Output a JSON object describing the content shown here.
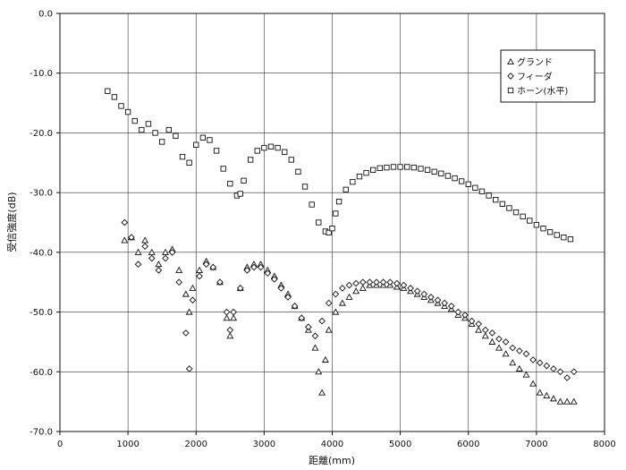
{
  "chart_data": {
    "type": "scatter",
    "title": "",
    "xlabel": "距離(mm)",
    "ylabel": "受信強度(dB)",
    "xlim": [
      0,
      8000
    ],
    "ylim": [
      -70,
      0
    ],
    "xticks": [
      0,
      1000,
      2000,
      3000,
      4000,
      5000,
      6000,
      7000,
      8000
    ],
    "yticks": [
      0,
      -10,
      -20,
      -30,
      -40,
      -50,
      -60,
      -70
    ],
    "xtick_labels": [
      "0",
      "1000",
      "2000",
      "3000",
      "4000",
      "5000",
      "6000",
      "7000",
      "8000"
    ],
    "ytick_labels": [
      "0.0",
      "-10.0",
      "-20.0",
      "-30.0",
      "-40.0",
      "-50.0",
      "-60.0",
      "-70.0"
    ],
    "grid": true,
    "legend_position": "top-right",
    "series": [
      {
        "name": "グランド",
        "marker": "triangle",
        "x": [
          950,
          1050,
          1150,
          1250,
          1350,
          1450,
          1550,
          1650,
          1750,
          1850,
          1900,
          1950,
          2050,
          2150,
          2250,
          2350,
          2450,
          2500,
          2550,
          2650,
          2750,
          2850,
          2950,
          3050,
          3150,
          3250,
          3350,
          3450,
          3550,
          3650,
          3750,
          3800,
          3850,
          3900,
          3950,
          4050,
          4150,
          4250,
          4350,
          4450,
          4550,
          4650,
          4750,
          4850,
          4950,
          5050,
          5150,
          5250,
          5350,
          5450,
          5550,
          5650,
          5750,
          5850,
          5950,
          6050,
          6150,
          6250,
          6350,
          6450,
          6550,
          6650,
          6750,
          6850,
          6950,
          7050,
          7150,
          7250,
          7350,
          7450,
          7550
        ],
        "y": [
          -38,
          -37.5,
          -40,
          -38,
          -40,
          -42,
          -40,
          -39.5,
          -43,
          -47,
          -50,
          -46,
          -43,
          -41.5,
          -42.5,
          -45,
          -51,
          -54,
          -51,
          -46,
          -42.5,
          -42,
          -42,
          -43,
          -44,
          -45.5,
          -47,
          -49,
          -51,
          -53,
          -56,
          -60,
          -63.5,
          -58,
          -53,
          -50,
          -48.5,
          -47.5,
          -46.5,
          -46,
          -45.5,
          -45.5,
          -45.5,
          -45.5,
          -45.8,
          -46,
          -46.5,
          -47,
          -47.5,
          -48,
          -48.5,
          -49,
          -49.5,
          -50.5,
          -51,
          -52,
          -53,
          -54,
          -55,
          -56,
          -57,
          -58.5,
          -59.5,
          -60.5,
          -62,
          -63.5,
          -64,
          -64.5,
          -65,
          -65,
          -65
        ]
      },
      {
        "name": "フィーダ",
        "marker": "diamond",
        "x": [
          950,
          1050,
          1150,
          1250,
          1350,
          1450,
          1550,
          1650,
          1750,
          1850,
          1900,
          1950,
          2050,
          2150,
          2250,
          2350,
          2450,
          2500,
          2550,
          2650,
          2750,
          2850,
          2950,
          3050,
          3150,
          3250,
          3350,
          3450,
          3550,
          3650,
          3750,
          3850,
          3950,
          4050,
          4150,
          4250,
          4350,
          4450,
          4550,
          4650,
          4750,
          4850,
          4950,
          5050,
          5150,
          5250,
          5350,
          5450,
          5550,
          5650,
          5750,
          5850,
          5950,
          6050,
          6150,
          6250,
          6350,
          6450,
          6550,
          6650,
          6750,
          6850,
          6950,
          7050,
          7150,
          7250,
          7350,
          7450,
          7550
        ],
        "y": [
          -35,
          -37.5,
          -42,
          -39,
          -41,
          -43,
          -41,
          -40,
          -45,
          -53.5,
          -59.5,
          -48,
          -44,
          -42,
          -42.5,
          -45,
          -50,
          -53,
          -50,
          -46,
          -43,
          -42.5,
          -42.5,
          -43.5,
          -44.5,
          -46,
          -47.5,
          -49,
          -51,
          -52.5,
          -54,
          -51.5,
          -48.5,
          -47,
          -46,
          -45.5,
          -45.2,
          -45,
          -45,
          -45,
          -45,
          -45,
          -45.2,
          -45.5,
          -46,
          -46.5,
          -47,
          -47.5,
          -48,
          -48.5,
          -49,
          -50,
          -50.5,
          -51.5,
          -52,
          -53,
          -53.5,
          -54.5,
          -55,
          -56,
          -56.5,
          -57,
          -58,
          -58.5,
          -59,
          -59.5,
          -60,
          -61,
          -60
        ]
      },
      {
        "name": "ホーン(水平)",
        "marker": "square",
        "x": [
          700,
          800,
          900,
          1000,
          1100,
          1200,
          1300,
          1400,
          1500,
          1600,
          1700,
          1800,
          1900,
          2000,
          2100,
          2200,
          2300,
          2400,
          2500,
          2600,
          2650,
          2700,
          2800,
          2900,
          3000,
          3100,
          3200,
          3300,
          3400,
          3500,
          3600,
          3700,
          3800,
          3900,
          3950,
          4000,
          4050,
          4100,
          4200,
          4300,
          4400,
          4500,
          4600,
          4700,
          4800,
          4900,
          5000,
          5100,
          5200,
          5300,
          5400,
          5500,
          5600,
          5700,
          5800,
          5900,
          6000,
          6100,
          6200,
          6300,
          6400,
          6500,
          6600,
          6700,
          6800,
          6900,
          7000,
          7100,
          7200,
          7300,
          7400,
          7500
        ],
        "y": [
          -13,
          -14,
          -15.5,
          -16.5,
          -18,
          -19.5,
          -18.5,
          -20,
          -21.5,
          -19.5,
          -20.5,
          -24,
          -25,
          -22,
          -20.8,
          -21.2,
          -23,
          -26,
          -28.5,
          -30.5,
          -30.2,
          -28,
          -24.5,
          -23,
          -22.5,
          -22.3,
          -22.5,
          -23.2,
          -24.5,
          -26.5,
          -29,
          -32,
          -35,
          -36.5,
          -36.7,
          -36,
          -33.5,
          -31.5,
          -29.5,
          -28.2,
          -27.3,
          -26.7,
          -26.2,
          -25.9,
          -25.8,
          -25.7,
          -25.7,
          -25.7,
          -25.8,
          -26,
          -26.2,
          -26.5,
          -26.8,
          -27.2,
          -27.6,
          -28.1,
          -28.6,
          -29.2,
          -29.8,
          -30.5,
          -31.2,
          -31.9,
          -32.6,
          -33.3,
          -34,
          -34.7,
          -35.4,
          -36,
          -36.6,
          -37.1,
          -37.5,
          -37.8
        ]
      }
    ]
  }
}
